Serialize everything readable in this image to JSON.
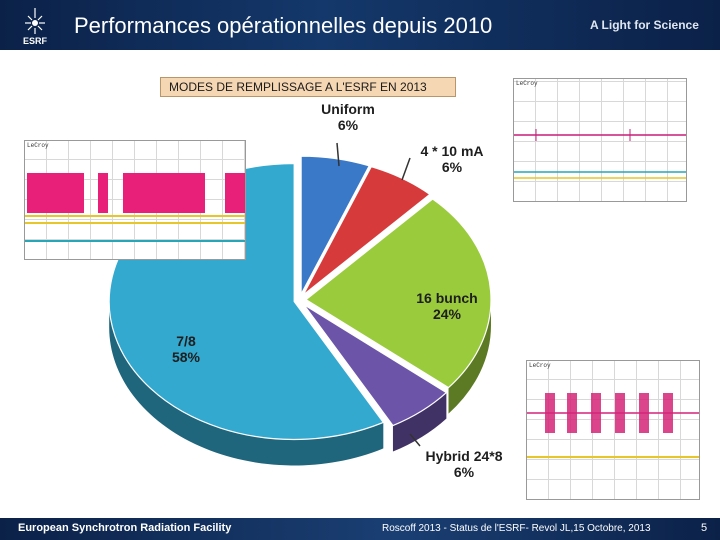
{
  "header": {
    "title": "Performances opérationnelles depuis 2010",
    "tagline": "A Light for Science",
    "logo_text": "ESRF"
  },
  "subtitle": "MODES DE REMPLISSAGE A L'ESRF EN 2013",
  "chart_data": {
    "type": "pie",
    "title": "MODES DE REMPLISSAGE A L'ESRF EN 2013",
    "style": "3d-exploded",
    "slices": [
      {
        "name": "Uniform",
        "value": 6,
        "label": "6%",
        "color": "#3a78c8"
      },
      {
        "name": "4 * 10 mA",
        "value": 6,
        "label": "6%",
        "color": "#d73a3a"
      },
      {
        "name": "16 bunch",
        "value": 24,
        "label": "24%",
        "color": "#9acb3c"
      },
      {
        "name": "Hybrid 24*8",
        "value": 6,
        "label": "6%",
        "color": "#6c54a8"
      },
      {
        "name": "7/8",
        "value": 58,
        "label": "58%",
        "color": "#33a9cf"
      }
    ]
  },
  "scopes": {
    "left_label": "LeCroy",
    "top_right_label": "LeCroy",
    "bottom_right_label": "LeCroy"
  },
  "footer": {
    "left": "European Synchrotron Radiation Facility",
    "mid": "Roscoff 2013 - Status de l'ESRF- Revol JL,15 Octobre, 2013",
    "page": "5"
  }
}
